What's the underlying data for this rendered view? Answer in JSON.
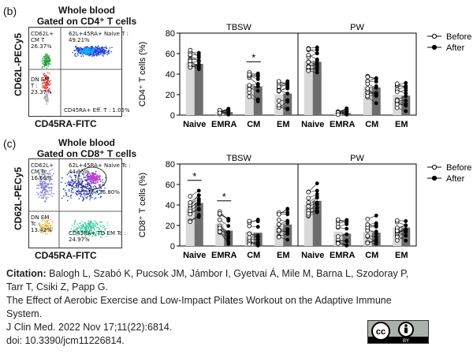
{
  "panels": [
    {
      "letter": "(b)",
      "flow": {
        "title_line1": "Whole blood",
        "title_line2": "Gated on CD4⁺ T cells",
        "y_label": "CD62L-PECy5",
        "x_label": "CD45RA-FITC",
        "gates": {
          "cm": "CD62L+\nCM T\n26.37%",
          "naive": "62L+45RA+ Naive T :\n49.21%",
          "dn_em": "DN EM\nT :\n23.37%",
          "eff": "CD45RA+ Eff. T : 1.05%"
        }
      },
      "chart": {
        "ylabel": "CD4⁺ T cells (%)",
        "ylim": [
          0,
          80
        ],
        "yticks": [
          "0",
          "20",
          "40",
          "60",
          "80"
        ],
        "groups": [
          "TBSW",
          "PW"
        ],
        "categories": [
          "Naive",
          "EMRA",
          "CM",
          "EM"
        ],
        "legend": [
          "Before",
          "After"
        ],
        "significance": [
          {
            "group": "TBSW",
            "category": "CM",
            "mark": "*"
          }
        ]
      }
    },
    {
      "letter": "(c)",
      "flow": {
        "title_line1": "Whole blood",
        "title_line2": "Gated on CD8⁺ T cells",
        "y_label": "CD62L-PECy5",
        "x_label": "CD45RA-FITC",
        "gates": {
          "cm": "CD62L+\nCM Tc :\n16.66%",
          "naive": "62L+45RA+ Naive Tc :\n44.95%",
          "ntc": "nTc : 36.80%",
          "dn_em": "DN EM\nTc :\n13.42%",
          "td_em": "CD45RA+ TD EM Tc :\n24.97%"
        }
      },
      "chart": {
        "ylabel": "CD8⁺ T cells (%)",
        "ylim": [
          0,
          80
        ],
        "yticks": [
          "0",
          "20",
          "40",
          "60",
          "80"
        ],
        "groups": [
          "TBSW",
          "PW"
        ],
        "categories": [
          "Naive",
          "EMRA",
          "CM",
          "EM"
        ],
        "legend": [
          "Before",
          "After"
        ],
        "significance": [
          {
            "group": "TBSW",
            "category": "Naive",
            "mark": "*"
          },
          {
            "group": "TBSW",
            "category": "EMRA",
            "mark": "*"
          }
        ]
      }
    }
  ],
  "chart_data": [
    {
      "type": "bar",
      "title": "",
      "ylabel": "CD4⁺ T cells (%)",
      "ylim": [
        0,
        80
      ],
      "categories": [
        "Naive",
        "EMRA",
        "CM",
        "EM",
        "Naive",
        "EMRA",
        "CM",
        "EM"
      ],
      "groups": [
        "TBSW",
        "TBSW",
        "TBSW",
        "TBSW",
        "PW",
        "PW",
        "PW",
        "PW"
      ],
      "series": [
        {
          "name": "Before",
          "values": [
            52,
            3,
            30,
            20,
            53,
            2,
            28,
            20
          ]
        },
        {
          "name": "After",
          "values": [
            50,
            3,
            28,
            21,
            52,
            2,
            27,
            19
          ]
        }
      ]
    },
    {
      "type": "bar",
      "title": "",
      "ylabel": "CD8⁺ T cells (%)",
      "ylim": [
        0,
        80
      ],
      "categories": [
        "Naive",
        "EMRA",
        "CM",
        "EM",
        "Naive",
        "EMRA",
        "CM",
        "EM"
      ],
      "groups": [
        "TBSW",
        "TBSW",
        "TBSW",
        "TBSW",
        "PW",
        "PW",
        "PW",
        "PW"
      ],
      "series": [
        {
          "name": "Before",
          "values": [
            36,
            22,
            14,
            20,
            40,
            14,
            14,
            18
          ]
        },
        {
          "name": "After",
          "values": [
            42,
            15,
            13,
            21,
            44,
            12,
            13,
            18
          ]
        }
      ]
    }
  ],
  "citation": {
    "label": "Citation:",
    "authors": " Balogh L, Szabó K, Pucsok JM, Jámbor I, Gyetvai Á, Mile M, Barna L, Szodoray P,",
    "authors2": "Tarr T, Csiki Z, Papp G.",
    "title": "The Effect of Aerobic Exercise and Low-Impact Pilates Workout on the Adaptive Immune",
    "title2": "System.",
    "journal": "J Clin Med. 2022 Nov 17;11(22):6814.",
    "doi": "doi: 10.3390/jcm11226814."
  },
  "license": {
    "cc": "cc",
    "by": "BY"
  },
  "colors": {
    "before_bar": "#d9d9d9",
    "after_bar": "#6e6e6e",
    "dots_blue": "#1f3fd6"
  }
}
